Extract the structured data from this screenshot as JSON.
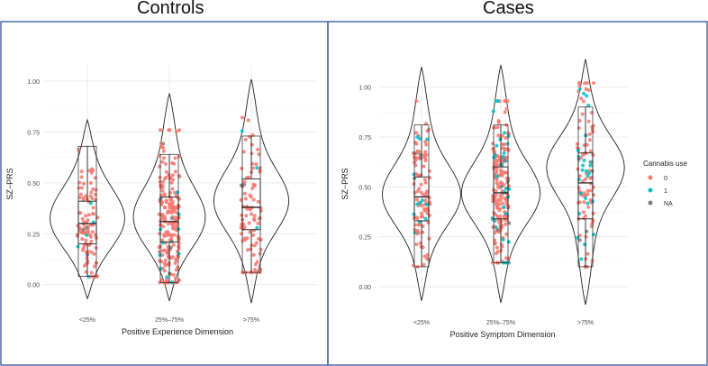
{
  "titles": {
    "left": "Controls",
    "right": "Cases"
  },
  "colors": {
    "cannabis_0": "#f8766d",
    "cannabis_1": "#00bfc4",
    "cannabis_na": "#7f7f7f",
    "frame": "#4a6aa5"
  },
  "legend": {
    "title": "Cannabis use",
    "items": [
      "0",
      "1",
      "NA"
    ]
  },
  "chart_data": [
    {
      "type": "violin-box-jitter",
      "title": "Controls",
      "xlabel": "Positive Experience Dimension",
      "ylabel": "SZ−PRS",
      "categories": [
        "<25%",
        "25%–75%",
        ">75%"
      ],
      "yticks": [
        0.0,
        0.25,
        0.5,
        0.75,
        1.0
      ],
      "ytick_labels": [
        "0.00",
        "0.25",
        "0.50",
        "0.75",
        "1.00"
      ],
      "ylim": [
        -0.09,
        1.08
      ],
      "grid": true,
      "legend": "none",
      "boxes": [
        {
          "category": "<25%",
          "q1": 0.2,
          "median": 0.3,
          "q3": 0.41,
          "lower": 0.04,
          "upper": 0.68
        },
        {
          "category": "25%–75%",
          "q1": 0.21,
          "median": 0.31,
          "q3": 0.43,
          "lower": 0.01,
          "upper": 0.64
        },
        {
          "category": ">75%",
          "q1": 0.27,
          "median": 0.38,
          "q3": 0.52,
          "lower": 0.06,
          "upper": 0.73
        }
      ],
      "violins": [
        {
          "category": "<25%",
          "min": -0.07,
          "max": 0.81,
          "peak": 0.32
        },
        {
          "category": "25%–75%",
          "min": -0.08,
          "max": 0.94,
          "peak": 0.3
        },
        {
          "category": ">75%",
          "min": -0.09,
          "max": 1.01,
          "peak": 0.42
        }
      ],
      "point_counts": [
        {
          "category": "<25%",
          "n0": 95,
          "n1": 5,
          "nNA": 3
        },
        {
          "category": "25%–75%",
          "n0": 200,
          "n1": 10,
          "nNA": 6
        },
        {
          "category": ">75%",
          "n0": 90,
          "n1": 3,
          "nNA": 2
        }
      ]
    },
    {
      "type": "violin-box-jitter",
      "title": "Cases",
      "xlabel": "Positive Symptom Dimension",
      "ylabel": "SZ−PRS",
      "categories": [
        "<25%",
        "25%–75%",
        ">75%"
      ],
      "yticks": [
        0.0,
        0.25,
        0.5,
        0.75,
        1.0
      ],
      "ytick_labels": [
        "0.00",
        "0.25",
        "0.50",
        "0.75",
        "1.00"
      ],
      "ylim": [
        -0.09,
        1.12
      ],
      "grid": true,
      "legend": "right",
      "boxes": [
        {
          "category": "<25%",
          "q1": 0.33,
          "median": 0.45,
          "q3": 0.55,
          "lower": 0.1,
          "upper": 0.81
        },
        {
          "category": "25%–75%",
          "q1": 0.34,
          "median": 0.47,
          "q3": 0.6,
          "lower": 0.12,
          "upper": 0.81
        },
        {
          "category": ">75%",
          "q1": 0.34,
          "median": 0.52,
          "q3": 0.67,
          "lower": 0.1,
          "upper": 0.9
        }
      ],
      "violins": [
        {
          "category": "<25%",
          "min": -0.07,
          "max": 1.1,
          "peak": 0.45
        },
        {
          "category": "25%–75%",
          "min": -0.08,
          "max": 1.11,
          "peak": 0.45
        },
        {
          "category": ">75%",
          "min": -0.09,
          "max": 1.14,
          "peak": 0.7
        }
      ],
      "point_counts": [
        {
          "category": "<25%",
          "n0": 95,
          "n1": 12,
          "nNA": 4
        },
        {
          "category": "25%–75%",
          "n0": 170,
          "n1": 30,
          "nNA": 6
        },
        {
          "category": ">75%",
          "n0": 80,
          "n1": 25,
          "nNA": 4
        }
      ]
    }
  ]
}
